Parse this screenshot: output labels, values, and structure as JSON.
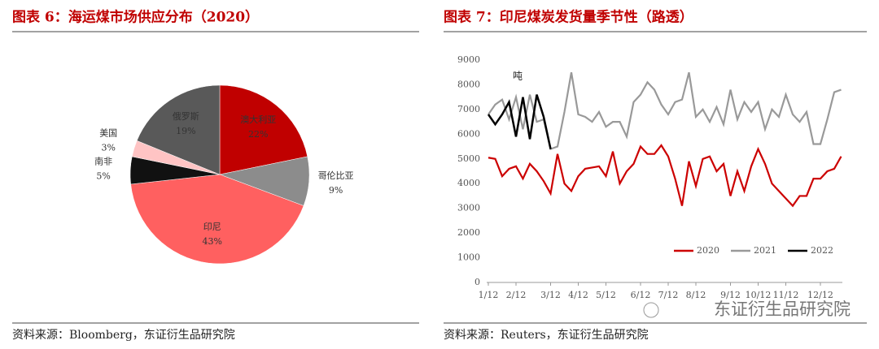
{
  "chart_data": [
    {
      "type": "pie",
      "title": "图表 6：海运煤市场供应分布（2020）",
      "categories": [
        "澳大利亚",
        "哥伦比亚",
        "印尼",
        "南非",
        "美国",
        "俄罗斯"
      ],
      "values": [
        22,
        9,
        43,
        5,
        3,
        19
      ],
      "value_labels": [
        "22%",
        "9%",
        "43%",
        "5%",
        "3%",
        "19%"
      ],
      "colors": [
        "#c00000",
        "#8c8c8c",
        "#ff6060",
        "#111111",
        "#ffc4c4",
        "#595959"
      ],
      "source": "资料来源：Bloomberg，东证衍生品研究院"
    },
    {
      "type": "line",
      "title": "图表 7：印尼煤炭发货量季节性（路透）",
      "ylabel": "吨",
      "categories": [
        "1/12",
        null,
        null,
        null,
        "2/12",
        null,
        null,
        null,
        null,
        "3/12",
        null,
        null,
        null,
        "4/12",
        null,
        null,
        null,
        "5/12",
        null,
        null,
        null,
        null,
        "6/12",
        null,
        null,
        null,
        "7/12",
        null,
        null,
        null,
        "8/12",
        null,
        null,
        null,
        null,
        "9/12",
        null,
        null,
        null,
        "10/12",
        null,
        null,
        null,
        "11/12",
        null,
        null,
        null,
        null,
        "12/12",
        null,
        null,
        null
      ],
      "series": [
        {
          "name": "2020",
          "color": "#cc0000",
          "values": [
            5050,
            5000,
            4300,
            4600,
            4700,
            4200,
            4800,
            4500,
            4100,
            3600,
            5200,
            4000,
            3700,
            4300,
            4600,
            4650,
            4700,
            4300,
            5300,
            4000,
            4500,
            4800,
            5500,
            5200,
            5200,
            5550,
            5100,
            4200,
            3100,
            4900,
            3900,
            5000,
            5100,
            4500,
            4800,
            3500,
            4500,
            3700,
            4700,
            5400,
            4800,
            4000,
            3700,
            3400,
            3100,
            3500,
            3500,
            4200,
            4200,
            4500,
            4600,
            5100
          ]
        },
        {
          "name": "2021",
          "color": "#999999",
          "values": [
            6800,
            7200,
            7400,
            6600,
            7500,
            6200,
            7600,
            6500,
            6600,
            5400,
            5500,
            6900,
            8500,
            6800,
            6700,
            6500,
            6900,
            6300,
            6500,
            6500,
            5900,
            7300,
            7600,
            8100,
            7800,
            7200,
            6800,
            7300,
            7400,
            8500,
            6700,
            7000,
            6500,
            7100,
            6400,
            7800,
            6600,
            7300,
            6900,
            7300,
            6200,
            7000,
            6700,
            7600,
            6800,
            6500,
            6900,
            5600,
            5600,
            6600,
            7700,
            7800
          ]
        },
        {
          "name": "2022",
          "color": "#000000",
          "values": [
            6800,
            6400,
            6800,
            7300,
            5900,
            7500,
            5800,
            7600,
            6700,
            5400,
            null,
            null,
            null,
            null,
            null,
            null,
            null,
            null,
            null,
            null,
            null,
            null,
            null,
            null,
            null,
            null,
            null,
            null,
            null,
            null,
            null,
            null,
            null,
            null,
            null,
            null,
            null,
            null,
            null,
            null,
            null,
            null,
            null,
            null,
            null,
            null,
            null,
            null,
            null,
            null,
            null,
            null
          ]
        }
      ],
      "ylim": [
        0,
        9000
      ],
      "yticks": [
        0,
        1000,
        2000,
        3000,
        4000,
        5000,
        6000,
        7000,
        8000,
        9000
      ],
      "legend": "bottom",
      "source": "资料来源：Reuters，东证衍生品研究院",
      "watermark": "东证衍生品研究院"
    }
  ]
}
